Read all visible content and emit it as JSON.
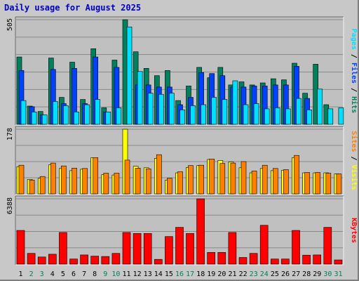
{
  "title": "Daily usage for August 2025",
  "colors": {
    "background": "#c8c8c8",
    "panel": "#c0c0c0",
    "hits": "#00805c",
    "files": "#0040ff",
    "pages": "#00e0ff",
    "visits": "#ffff00",
    "sites": "#ff8000",
    "kbytes": "#ff0000",
    "title": "#0000c8",
    "weekday_label": "#000000",
    "weekend_label": "#00805c"
  },
  "chart_data": [
    {
      "type": "bar",
      "title": "Daily usage for August 2025",
      "axis_max_label": "505",
      "ylim": [
        0,
        505
      ],
      "categories": [
        "1",
        "2",
        "3",
        "4",
        "5",
        "6",
        "7",
        "8",
        "9",
        "10",
        "11",
        "12",
        "13",
        "14",
        "15",
        "16",
        "17",
        "18",
        "19",
        "20",
        "21",
        "22",
        "23",
        "24",
        "25",
        "26",
        "27",
        "28",
        "29",
        "30",
        "31"
      ],
      "weekend_days": [
        "2",
        "3",
        "9",
        "10",
        "16",
        "17",
        "23",
        "24",
        "30",
        "31"
      ],
      "legend": [
        {
          "label": "Hits",
          "color_key": "hits"
        },
        {
          "label": "Files",
          "color_key": "files"
        },
        {
          "label": "Pages",
          "color_key": "pages"
        }
      ],
      "series": [
        {
          "name": "Hits",
          "color_key": "hits",
          "values": [
            325,
            88,
            62,
            320,
            130,
            300,
            120,
            365,
            80,
            310,
            505,
            350,
            270,
            235,
            260,
            115,
            185,
            275,
            225,
            275,
            190,
            205,
            190,
            200,
            220,
            215,
            295,
            150,
            290,
            95,
            0
          ]
        },
        {
          "name": "Files",
          "color_key": "files",
          "values": [
            260,
            85,
            45,
            265,
            100,
            270,
            100,
            325,
            60,
            275,
            0,
            190,
            190,
            180,
            180,
            95,
            130,
            250,
            245,
            235,
            180,
            180,
            185,
            185,
            190,
            190,
            280,
            125,
            0,
            0,
            0
          ]
        },
        {
          "name": "Pages",
          "color_key": "pages",
          "values": [
            115,
            60,
            45,
            110,
            90,
            60,
            95,
            120,
            60,
            80,
            470,
            255,
            150,
            145,
            150,
            70,
            90,
            95,
            130,
            120,
            210,
            95,
            100,
            75,
            80,
            75,
            125,
            70,
            170,
            75,
            80
          ]
        }
      ]
    },
    {
      "type": "bar",
      "axis_max_label": "178",
      "ylim": [
        0,
        178
      ],
      "categories": [
        "1",
        "2",
        "3",
        "4",
        "5",
        "6",
        "7",
        "8",
        "9",
        "10",
        "11",
        "12",
        "13",
        "14",
        "15",
        "16",
        "17",
        "18",
        "19",
        "20",
        "21",
        "22",
        "23",
        "24",
        "25",
        "26",
        "27",
        "28",
        "29",
        "30",
        "31"
      ],
      "legend": [
        {
          "label": "Visits",
          "color_key": "visits"
        },
        {
          "label": "Sites",
          "color_key": "sites"
        }
      ],
      "series": [
        {
          "name": "Visits",
          "color_key": "visits",
          "values": [
            75,
            40,
            43,
            80,
            70,
            64,
            68,
            100,
            53,
            52,
            178,
            76,
            72,
            98,
            38,
            58,
            73,
            78,
            95,
            92,
            88,
            72,
            58,
            70,
            64,
            65,
            100,
            58,
            58,
            58,
            55
          ]
        },
        {
          "name": "Sites",
          "color_key": "sites",
          "values": [
            79,
            38,
            48,
            85,
            77,
            71,
            70,
            100,
            57,
            57,
            93,
            71,
            69,
            108,
            43,
            61,
            78,
            79,
            96,
            84,
            85,
            89,
            63,
            79,
            70,
            67,
            106,
            59,
            59,
            57,
            55
          ]
        }
      ]
    },
    {
      "type": "bar",
      "axis_max_label": "6388",
      "ylim": [
        0,
        6388
      ],
      "categories": [
        "1",
        "2",
        "3",
        "4",
        "5",
        "6",
        "7",
        "8",
        "9",
        "10",
        "11",
        "12",
        "13",
        "14",
        "15",
        "16",
        "17",
        "18",
        "19",
        "20",
        "21",
        "22",
        "23",
        "24",
        "25",
        "26",
        "27",
        "28",
        "29",
        "30",
        "31"
      ],
      "legend": [
        {
          "label": "KBytes",
          "color_key": "kbytes"
        }
      ],
      "series": [
        {
          "name": "KBytes",
          "color_key": "kbytes",
          "values": [
            3300,
            1050,
            700,
            970,
            3100,
            500,
            900,
            780,
            750,
            1050,
            3100,
            3000,
            3000,
            470,
            2700,
            3600,
            3000,
            6388,
            1150,
            1150,
            3100,
            650,
            1050,
            3800,
            500,
            500,
            3300,
            880,
            900,
            3600,
            410
          ]
        }
      ]
    }
  ]
}
